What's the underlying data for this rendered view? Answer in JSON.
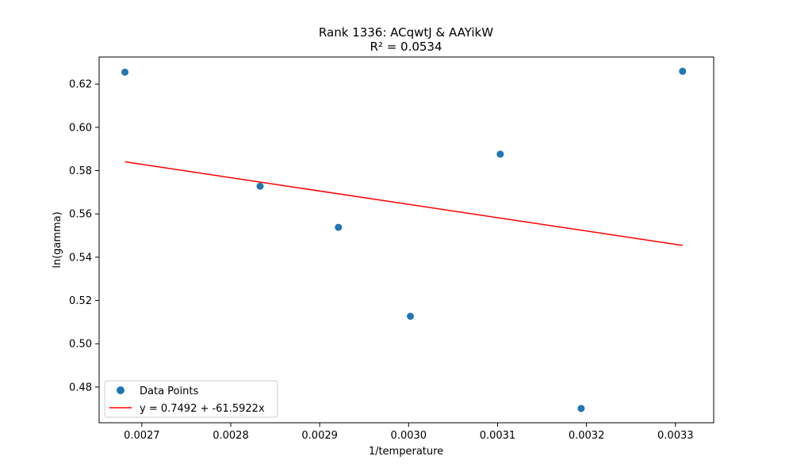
{
  "chart_data": {
    "type": "scatter",
    "title": "Rank 1336: ACqwtJ & AAYikW",
    "subtitle": "R² = 0.0534",
    "xlabel": "1/temperature",
    "ylabel": "ln(gamma)",
    "xlim": [
      0.002652,
      0.003343
    ],
    "ylim": [
      0.4635,
      0.6325
    ],
    "xticks": [
      0.0027,
      0.0028,
      0.0029,
      0.003,
      0.0031,
      0.0032,
      0.0033
    ],
    "xtick_labels": [
      "0.0027",
      "0.0028",
      "0.0029",
      "0.0030",
      "0.0031",
      "0.0032",
      "0.0033"
    ],
    "yticks": [
      0.48,
      0.5,
      0.52,
      0.54,
      0.56,
      0.58,
      0.6,
      0.62
    ],
    "ytick_labels": [
      "0.48",
      "0.50",
      "0.52",
      "0.54",
      "0.56",
      "0.58",
      "0.60",
      "0.62"
    ],
    "grid": false,
    "legend_position": "bottom-left",
    "series": [
      {
        "name": "Data Points",
        "kind": "scatter",
        "color": "#1f77b4",
        "x": [
          0.002681,
          0.002833,
          0.002921,
          0.003002,
          0.003103,
          0.003194,
          0.003308
        ],
        "y": [
          0.6255,
          0.5728,
          0.5538,
          0.5127,
          0.5876,
          0.4701,
          0.6259
        ]
      },
      {
        "name": "y = 0.7492 + -61.5922x",
        "kind": "line",
        "color": "#ff0000",
        "intercept": 0.7492,
        "slope": -61.5922,
        "x_range": [
          0.002681,
          0.003308
        ]
      }
    ]
  }
}
